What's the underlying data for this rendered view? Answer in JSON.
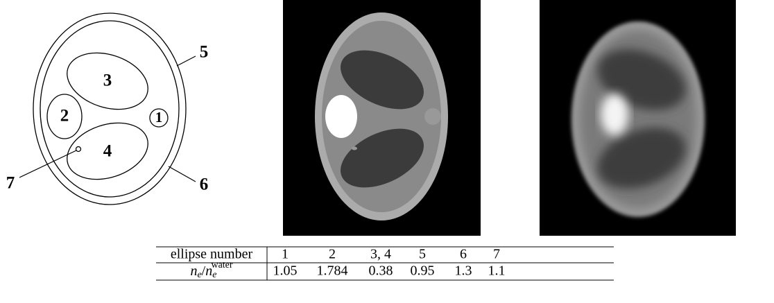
{
  "diagram": {
    "labels": [
      "1",
      "2",
      "3",
      "4",
      "5",
      "6",
      "7"
    ]
  },
  "table": {
    "header": "ellipse number",
    "columns": [
      1,
      2,
      "3, 4",
      5,
      6,
      7
    ],
    "row_label": {
      "symbol": "n",
      "sub": "e",
      "slash": "/",
      "symbol2": "n",
      "sub2": "e",
      "sup2": "water"
    },
    "values": [
      1.05,
      1.784,
      0.38,
      0.95,
      1.3,
      1.1
    ]
  }
}
